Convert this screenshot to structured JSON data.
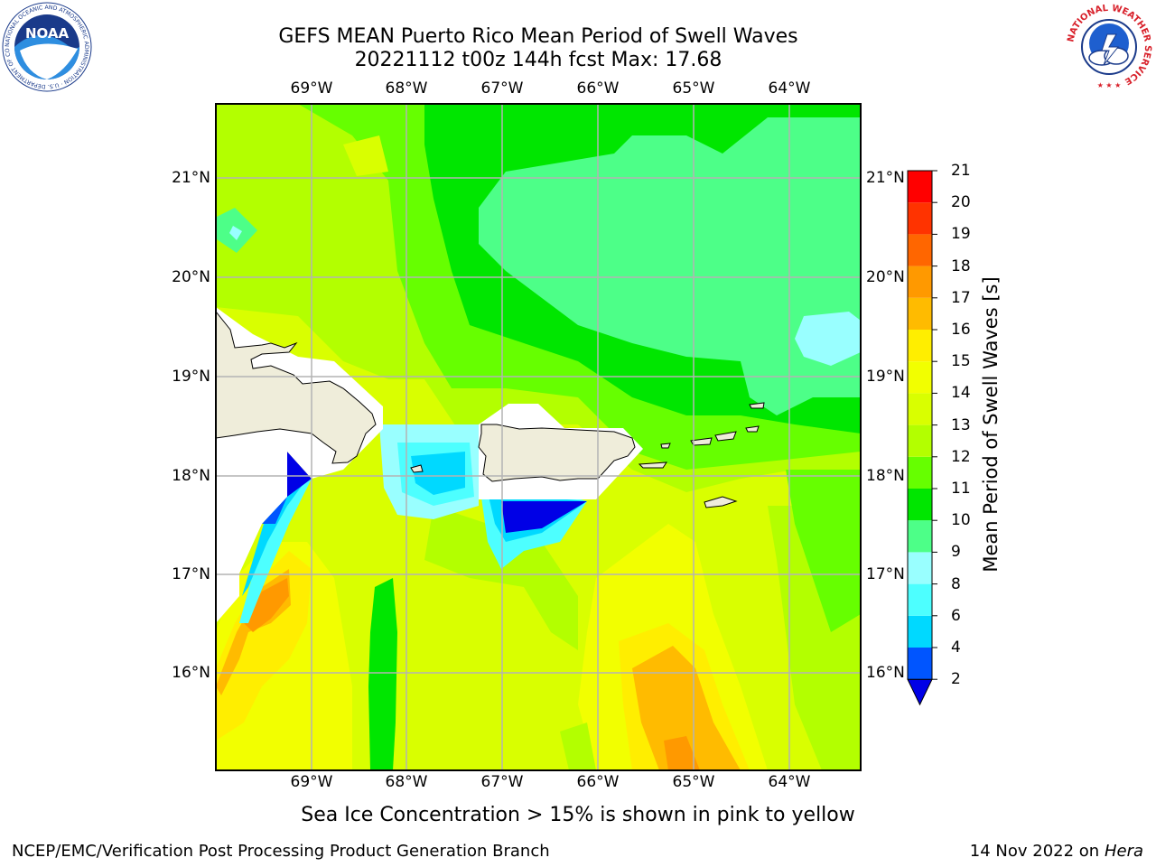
{
  "header": {
    "title_line1": "GEFS MEAN Puerto Rico Mean Period of Swell Waves",
    "title_line2": "20221112 t00z 144h fcst   Max: 17.68"
  },
  "logos": {
    "noaa_text": "NOAA",
    "noaa_ring_text": "NATIONAL OCEANIC AND ATMOSPHERIC ADMINISTRATION · U.S. DEPARTMENT OF COMMERCE",
    "nws_ring_text": "NATIONAL WEATHER SERVICE"
  },
  "map": {
    "longitude_labels": [
      "69°W",
      "68°W",
      "67°W",
      "66°W",
      "65°W",
      "64°W"
    ],
    "latitude_labels": [
      "21°N",
      "20°N",
      "19°N",
      "18°N",
      "17°N",
      "16°N"
    ],
    "land_color": "#efedda",
    "missing_color": "#ffffff"
  },
  "colorbar": {
    "title": "Mean Period of Swell Waves [s]",
    "ticks": [
      "21",
      "20",
      "19",
      "18",
      "17",
      "16",
      "15",
      "14",
      "13",
      "12",
      "11",
      "10",
      "9",
      "8",
      "6",
      "4",
      "2"
    ],
    "colors": [
      "#0000e6",
      "#0055ff",
      "#00d9ff",
      "#4dffff",
      "#99ffff",
      "#4dff88",
      "#00e600",
      "#66ff00",
      "#b3ff00",
      "#d9ff00",
      "#f2ff00",
      "#ffee00",
      "#ffbb00",
      "#ff9900",
      "#ff6600",
      "#ff3300",
      "#ff0000"
    ]
  },
  "footer": {
    "sea_ice_note": "Sea Ice Concentration > 15% is shown in pink to yellow",
    "credit": "NCEP/EMC/Verification Post Processing Product Generation Branch",
    "date": "14 Nov 2022 on",
    "machine": "Hera"
  }
}
